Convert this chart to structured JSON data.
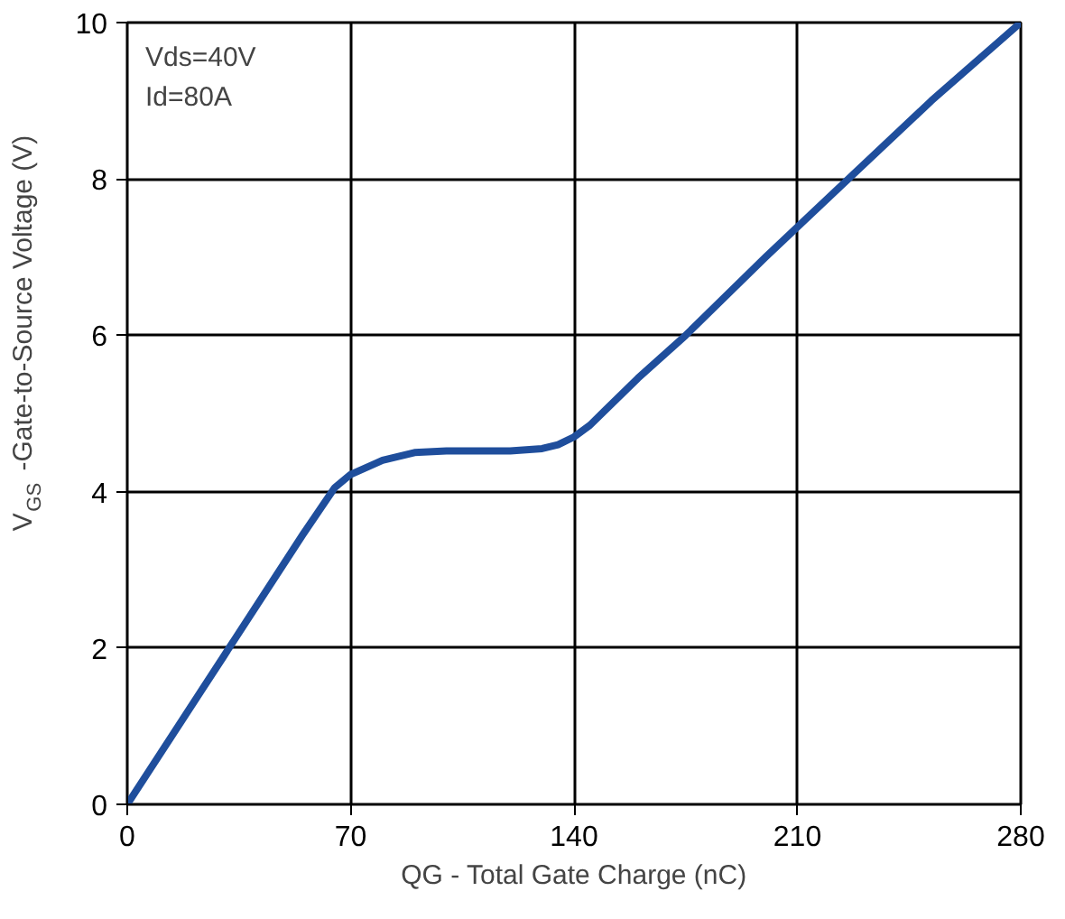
{
  "chart_data": {
    "type": "line",
    "xlabel": "QG - Total Gate Charge (nC)",
    "ylabel": "V$_{GS}$ -Gate-to-Source Voltage (V)",
    "annotations": [
      "Vds=40V",
      "Id=80A"
    ],
    "x": [
      0,
      30,
      55,
      60,
      65,
      70,
      80,
      90,
      100,
      120,
      130,
      135,
      140,
      145,
      150,
      160,
      175,
      200,
      226,
      252,
      280
    ],
    "series": [
      {
        "color": "#1f4e9c",
        "values": [
          0,
          1.88,
          3.45,
          3.75,
          4.05,
          4.22,
          4.4,
          4.5,
          4.52,
          4.52,
          4.55,
          4.6,
          4.7,
          4.85,
          5.05,
          5.45,
          6.0,
          7.0,
          8.0,
          9.0,
          10
        ]
      }
    ],
    "xlim": [
      0,
      280
    ],
    "xticks": [
      0,
      70,
      140,
      210,
      280
    ],
    "ylim": [
      0,
      10
    ],
    "yticks": [
      0,
      2,
      4,
      6,
      8,
      10
    ],
    "grid": true,
    "marker": "none",
    "line_style": "solid"
  }
}
